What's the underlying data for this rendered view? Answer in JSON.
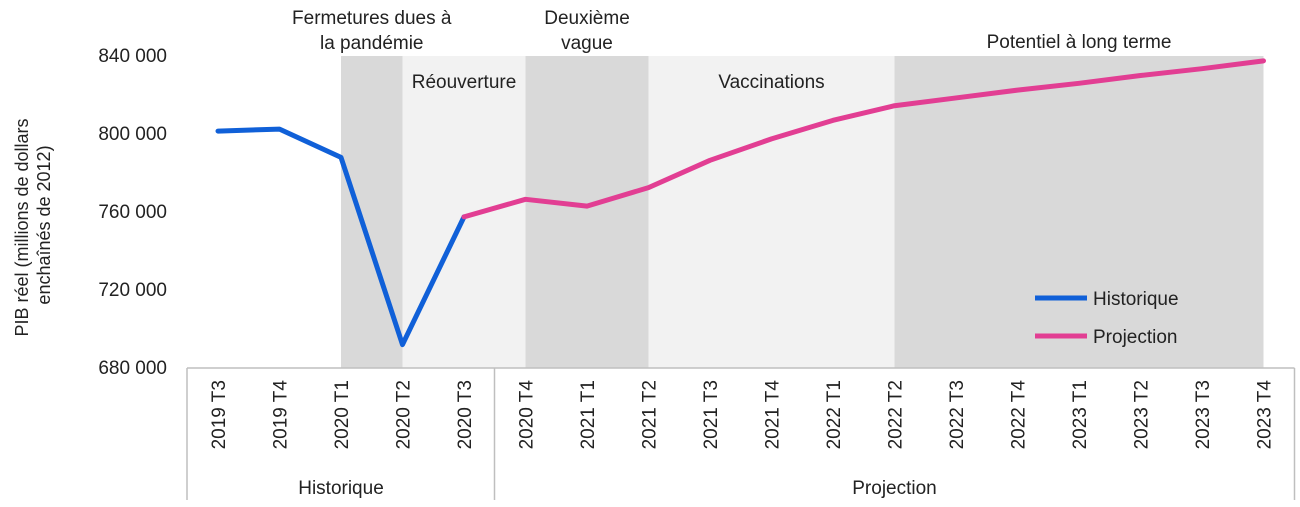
{
  "chart_data": {
    "type": "line",
    "ylabel_line1": "PIB réel (millions de dollars",
    "ylabel_line2": "enchaînés de  2012)",
    "ylim": [
      680000,
      840000
    ],
    "yticks": [
      "680 000",
      "720 000",
      "760 000",
      "800 000",
      "840 000"
    ],
    "ytick_values": [
      680000,
      720000,
      760000,
      800000,
      840000
    ],
    "categories": [
      "2019 T3",
      "2019 T4",
      "2020 T1",
      "2020 T2",
      "2020 T3",
      "2020 T4",
      "2021 T1",
      "2021 T2",
      "2021 T3",
      "2021 T4",
      "2022 T1",
      "2022 T2",
      "2022 T3",
      "2022 T4",
      "2023 T1",
      "2023 T2",
      "2023 T3",
      "2023 T4"
    ],
    "groups": [
      {
        "label": "Historique",
        "from": "2019 T3",
        "to": "2020 T3"
      },
      {
        "label": "Projection",
        "from": "2020 T4",
        "to": "2023 T4"
      }
    ],
    "phases": [
      {
        "label": "Fermetures dues à la pandémie",
        "label_lines": [
          "Fermetures dues à",
          "la pandémie"
        ],
        "from": "2020 T1",
        "to": "2020 T2",
        "shade": "dark"
      },
      {
        "label": "Réouverture",
        "label_lines": [
          "Réouverture"
        ],
        "from": "2020 T2",
        "to": "2020 T4",
        "shade": "light"
      },
      {
        "label": "Deuxième vague",
        "label_lines": [
          "Deuxième",
          "vague"
        ],
        "from": "2020 T4",
        "to": "2021 T2",
        "shade": "dark"
      },
      {
        "label": "Vaccinations",
        "label_lines": [
          "Vaccinations"
        ],
        "from": "2021 T2",
        "to": "2022 T2",
        "shade": "light"
      },
      {
        "label": "Potentiel à long terme",
        "label_lines": [
          "Potentiel à long terme"
        ],
        "from": "2022 T2",
        "to": "2023 T4",
        "shade": "dark"
      }
    ],
    "series": [
      {
        "name": "Historique",
        "color": "#1060d8",
        "points": [
          [
            "2019 T3",
            801500
          ],
          [
            "2019 T4",
            802500
          ],
          [
            "2020 T1",
            788000
          ],
          [
            "2020 T2",
            692000
          ],
          [
            "2020 T3",
            757500
          ]
        ]
      },
      {
        "name": "Projection",
        "color": "#e23e93",
        "points": [
          [
            "2020 T3",
            757500
          ],
          [
            "2020 T4",
            766500
          ],
          [
            "2021 T1",
            763000
          ],
          [
            "2021 T2",
            772500
          ],
          [
            "2021 T3",
            786500
          ],
          [
            "2021 T4",
            797500
          ],
          [
            "2022 T1",
            807000
          ],
          [
            "2022 T2",
            814500
          ],
          [
            "2022 T3",
            818500
          ],
          [
            "2022 T4",
            822500
          ],
          [
            "2023 T1",
            826000
          ],
          [
            "2023 T2",
            830000
          ],
          [
            "2023 T3",
            833500
          ],
          [
            "2023 T4",
            837500
          ]
        ]
      }
    ],
    "shade_colors": {
      "dark": "#d9d9d9",
      "light": "#f2f2f2"
    },
    "legend_position": "bottom-right",
    "grid": false
  }
}
